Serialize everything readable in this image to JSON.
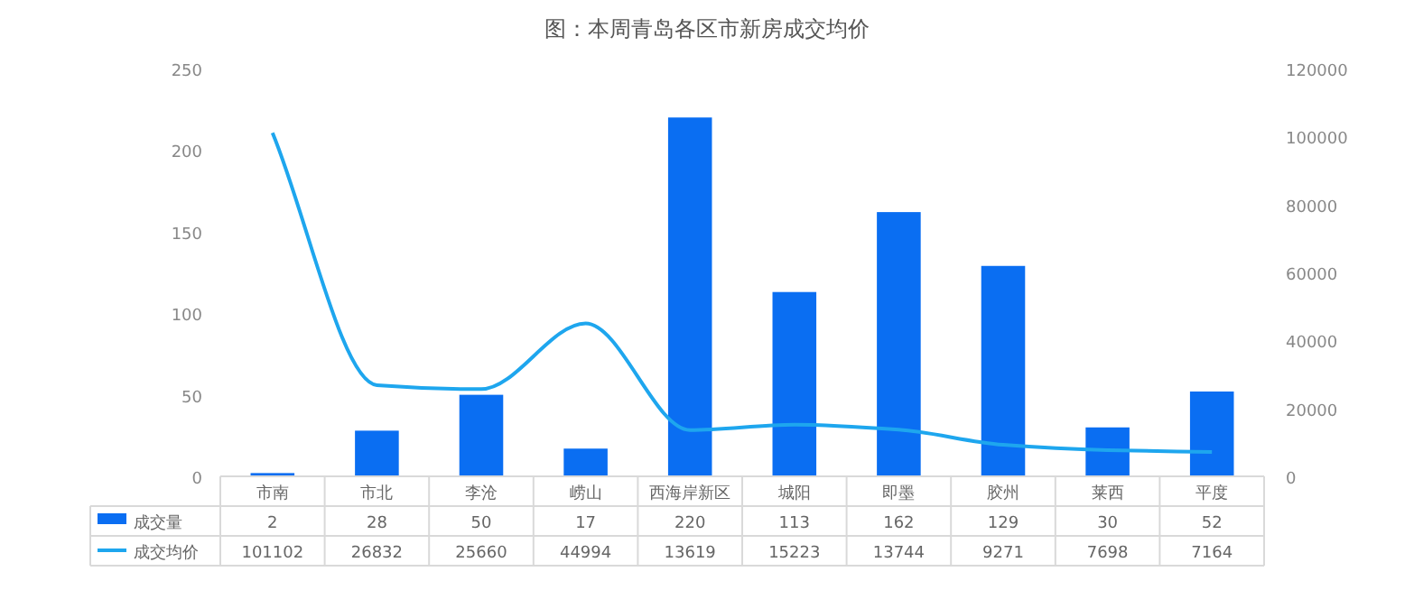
{
  "chart_data": {
    "type": "bar",
    "title": "图：本周青岛各区市新房成交均价",
    "categories": [
      "市南",
      "市北",
      "李沧",
      "崂山",
      "西海岸新区",
      "城阳",
      "即墨",
      "胶州",
      "莱西",
      "平度"
    ],
    "series": [
      {
        "name": "成交量",
        "color": "#0a6ef2",
        "values": [
          2,
          28,
          50,
          17,
          220,
          113,
          162,
          129,
          30,
          52
        ]
      },
      {
        "name": "成交均价",
        "type": "line",
        "axis": "y2",
        "color": "#1ea6ee",
        "values": [
          101102,
          26832,
          25660,
          44994,
          13619,
          15223,
          13744,
          9271,
          7698,
          7164
        ]
      }
    ],
    "ylim": [
      0,
      250
    ],
    "yticks": [
      0,
      50,
      100,
      150,
      200,
      250
    ],
    "y2lim": [
      0,
      120000
    ],
    "y2ticks": [
      0,
      20000,
      40000,
      60000,
      80000,
      100000,
      120000
    ],
    "data_labels": true,
    "legend": "bottom left",
    "grid": false,
    "marker": "none"
  }
}
